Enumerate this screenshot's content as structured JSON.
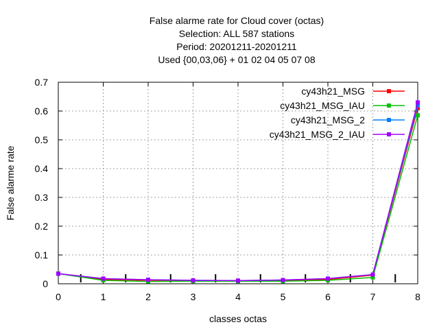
{
  "chart_data": {
    "type": "line",
    "title_lines": [
      "False alarme rate  for Cloud cover (octas)",
      "Selection: ALL    587 stations",
      "Period: 20201211-20201211",
      "Used {00,03,06} + 01 02 04 05 07 08"
    ],
    "xlabel": "classes octas",
    "ylabel": "False alarme rate",
    "xlim": [
      0,
      8
    ],
    "ylim": [
      0,
      0.7
    ],
    "xticks": [
      "0",
      "1",
      "2",
      "3",
      "4",
      "5",
      "6",
      "7",
      "8"
    ],
    "yticks": [
      "0",
      "0.1",
      "0.2",
      "0.3",
      "0.4",
      "0.5",
      "0.6",
      "0.7"
    ],
    "grid": true,
    "legend_position": "top-right",
    "x": [
      0,
      1,
      2,
      3,
      4,
      5,
      6,
      7,
      8
    ],
    "series": [
      {
        "name": "cy43h21_MSG",
        "color": "#ff0000",
        "values": [
          0.035,
          0.015,
          0.012,
          0.011,
          0.01,
          0.011,
          0.015,
          0.03,
          0.61
        ]
      },
      {
        "name": "cy43h21_MSG_IAU",
        "color": "#00c000",
        "values": [
          0.035,
          0.012,
          0.008,
          0.009,
          0.009,
          0.009,
          0.012,
          0.022,
          0.585
        ]
      },
      {
        "name": "cy43h21_MSG_2",
        "color": "#0080ff",
        "values": [
          0.035,
          0.018,
          0.014,
          0.012,
          0.011,
          0.013,
          0.018,
          0.032,
          0.62
        ]
      },
      {
        "name": "cy43h21_MSG_2_IAU",
        "color": "#a000ff",
        "values": [
          0.035,
          0.018,
          0.014,
          0.012,
          0.011,
          0.013,
          0.018,
          0.032,
          0.63
        ]
      }
    ]
  }
}
